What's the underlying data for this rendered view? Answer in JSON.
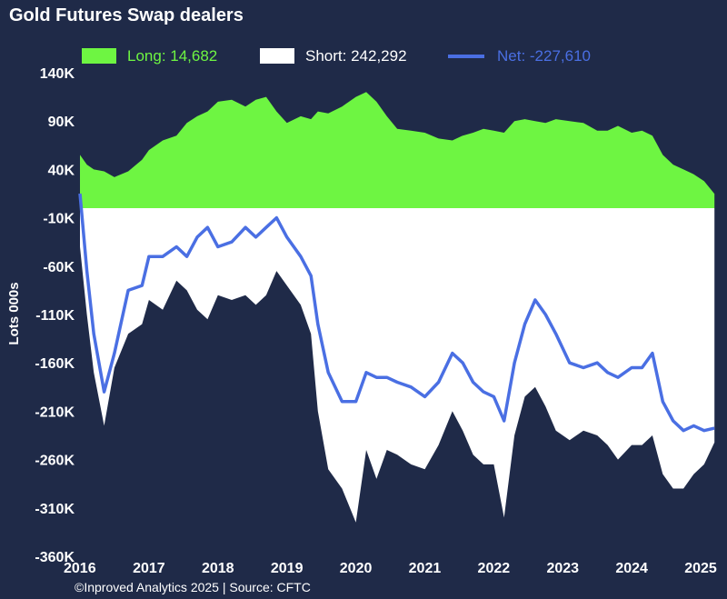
{
  "chart_data": {
    "type": "area",
    "title": "Gold Futures Swap dealers",
    "ylabel": "Lots 000s",
    "xlabel": "",
    "ylim": [
      -360000,
      140000
    ],
    "xlim": [
      2016.0,
      2025.25
    ],
    "y_ticks": [
      140000,
      90000,
      40000,
      -10000,
      -60000,
      -110000,
      -160000,
      -210000,
      -260000,
      -310000,
      -360000
    ],
    "y_tick_labels": [
      "140K",
      "90K",
      "40K",
      "-10K",
      "-60K",
      "-110K",
      "-160K",
      "-210K",
      "-260K",
      "-310K",
      "-360K"
    ],
    "x_ticks": [
      2016,
      2017,
      2018,
      2019,
      2020,
      2021,
      2022,
      2023,
      2024,
      2025
    ],
    "x_tick_labels": [
      "2016",
      "2017",
      "2018",
      "2019",
      "2020",
      "2021",
      "2022",
      "2023",
      "2024",
      "2025"
    ],
    "legend": [
      {
        "label": "Long: 14,682",
        "color": "#6ef542",
        "kind": "area"
      },
      {
        "label": "Short: 242,292",
        "color": "#ffffff",
        "kind": "area"
      },
      {
        "label": "Net: -227,610",
        "color": "#4a6fe3",
        "kind": "line"
      }
    ],
    "legend_position": "top",
    "grid": false,
    "x": [
      2016.0,
      2016.1,
      2016.2,
      2016.35,
      2016.5,
      2016.7,
      2016.9,
      2017.0,
      2017.2,
      2017.4,
      2017.55,
      2017.7,
      2017.85,
      2018.0,
      2018.2,
      2018.4,
      2018.55,
      2018.7,
      2018.85,
      2019.0,
      2019.2,
      2019.35,
      2019.45,
      2019.6,
      2019.8,
      2020.0,
      2020.15,
      2020.3,
      2020.45,
      2020.6,
      2020.8,
      2021.0,
      2021.2,
      2021.4,
      2021.55,
      2021.7,
      2021.85,
      2022.0,
      2022.15,
      2022.3,
      2022.45,
      2022.6,
      2022.75,
      2022.9,
      2023.1,
      2023.3,
      2023.5,
      2023.65,
      2023.8,
      2024.0,
      2024.15,
      2024.3,
      2024.45,
      2024.6,
      2024.75,
      2024.9,
      2025.05,
      2025.2
    ],
    "series": [
      {
        "name": "Long",
        "values": [
          55000,
          45000,
          40000,
          38000,
          32000,
          38000,
          50000,
          60000,
          70000,
          75000,
          88000,
          95000,
          100000,
          110000,
          112000,
          105000,
          112000,
          115000,
          100000,
          88000,
          95000,
          92000,
          100000,
          98000,
          105000,
          115000,
          120000,
          110000,
          95000,
          82000,
          80000,
          78000,
          72000,
          70000,
          75000,
          78000,
          82000,
          80000,
          78000,
          90000,
          92000,
          90000,
          88000,
          92000,
          90000,
          88000,
          80000,
          80000,
          85000,
          78000,
          80000,
          75000,
          55000,
          45000,
          40000,
          35000,
          28000,
          14682
        ]
      },
      {
        "name": "Short",
        "values": [
          -40000,
          -110000,
          -170000,
          -225000,
          -165000,
          -130000,
          -120000,
          -95000,
          -105000,
          -75000,
          -85000,
          -105000,
          -115000,
          -90000,
          -95000,
          -90000,
          -100000,
          -90000,
          -65000,
          -80000,
          -100000,
          -130000,
          -210000,
          -270000,
          -290000,
          -325000,
          -250000,
          -280000,
          -250000,
          -255000,
          -265000,
          -270000,
          -245000,
          -210000,
          -230000,
          -255000,
          -265000,
          -265000,
          -320000,
          -235000,
          -195000,
          -185000,
          -205000,
          -230000,
          -240000,
          -230000,
          -235000,
          -245000,
          -260000,
          -245000,
          -245000,
          -235000,
          -275000,
          -290000,
          -290000,
          -275000,
          -265000,
          -242292
        ]
      },
      {
        "name": "Net",
        "values": [
          15000,
          -65000,
          -130000,
          -190000,
          -150000,
          -85000,
          -80000,
          -50000,
          -50000,
          -40000,
          -50000,
          -30000,
          -20000,
          -40000,
          -35000,
          -20000,
          -30000,
          -20000,
          -10000,
          -30000,
          -50000,
          -70000,
          -120000,
          -170000,
          -200000,
          -200000,
          -170000,
          -175000,
          -175000,
          -180000,
          -185000,
          -195000,
          -180000,
          -150000,
          -160000,
          -180000,
          -190000,
          -195000,
          -220000,
          -160000,
          -120000,
          -95000,
          -110000,
          -130000,
          -160000,
          -165000,
          -160000,
          -170000,
          -175000,
          -165000,
          -165000,
          -150000,
          -200000,
          -220000,
          -230000,
          -225000,
          -230000,
          -227610
        ]
      }
    ]
  },
  "footer": "©Inproved Analytics 2025 | Source: CFTC"
}
